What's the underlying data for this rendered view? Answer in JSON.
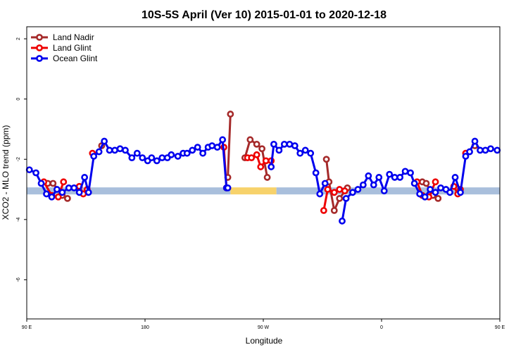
{
  "chart_data": {
    "type": "line",
    "title": "10S-5S April (Ver 10)   2015-01-01 to 2020-12-18",
    "xlabel": "Longitude",
    "ylabel": "XCO2 - MLO trend (ppm)",
    "xlim": [
      0,
      360
    ],
    "ylim": [
      -7.3,
      2.4
    ],
    "x_ticks": [
      {
        "value": 0,
        "label": "90 E"
      },
      {
        "value": 90,
        "label": "180"
      },
      {
        "value": 180,
        "label": "90 W"
      },
      {
        "value": 270,
        "label": "0"
      },
      {
        "value": 360,
        "label": "90 E"
      },
      {
        "value": 450,
        "label": "180"
      }
    ],
    "y_ticks": [
      {
        "value": 2,
        "label": "2"
      },
      {
        "value": 0,
        "label": "0"
      },
      {
        "value": -2,
        "label": "-2"
      },
      {
        "value": -4,
        "label": "-4"
      },
      {
        "value": -6,
        "label": "-6"
      }
    ],
    "grid": false,
    "legend_position": "top-left",
    "surface_band": {
      "y": -3.05,
      "segments": [
        {
          "x0": 0,
          "x1": 155,
          "color": "#a9bfdc"
        },
        {
          "x0": 155,
          "x1": 190,
          "color": "#f7d26b"
        },
        {
          "x0": 190,
          "x1": 360,
          "color": "#a9bfdc"
        }
      ]
    },
    "series": [
      {
        "name": "Land Nadir",
        "color": "#a52a2a",
        "segments": [
          {
            "x": [
              16,
              20,
              27,
              31
            ],
            "y": [
              -2.8,
              -2.8,
              -3.2,
              -3.3
            ]
          },
          {
            "x": [
              57
            ],
            "y": [
              -1.55
            ]
          },
          {
            "x": [
              153,
              155
            ],
            "y": [
              -2.6,
              -0.5
            ]
          },
          {
            "x": [
              166,
              170,
              175,
              179,
              183
            ],
            "y": [
              -1.95,
              -1.35,
              -1.5,
              -1.65,
              -2.6
            ]
          },
          {
            "x": [
              228,
              230,
              234,
              238,
              244
            ],
            "y": [
              -2.0,
              -2.75,
              -3.7,
              -3.3,
              -2.95
            ]
          },
          {
            "x": [
              301,
              304,
              309,
              313
            ],
            "y": [
              -2.75,
              -2.8,
              -3.2,
              -3.3
            ]
          },
          {
            "x": [
              341
            ],
            "y": [
              -1.55
            ]
          }
        ]
      },
      {
        "name": "Land Glint",
        "color": "#ee0000",
        "segments": [
          {
            "x": [
              13,
              19,
              24,
              28
            ],
            "y": [
              -2.75,
              -3.2,
              -3.25,
              -2.75
            ]
          },
          {
            "x": [
              40,
              43,
              46
            ],
            "y": [
              -2.9,
              -3.15,
              -3.0
            ]
          },
          {
            "x": [
              50
            ],
            "y": [
              -1.8
            ]
          },
          {
            "x": [
              150,
              152
            ],
            "y": [
              -1.6,
              -2.95
            ]
          },
          {
            "x": [
              168,
              171,
              175,
              178,
              182,
              186
            ],
            "y": [
              -1.95,
              -1.95,
              -1.85,
              -2.25,
              -2.05,
              -2.05
            ]
          },
          {
            "x": [
              226,
              229,
              234,
              238,
              242
            ],
            "y": [
              -3.7,
              -3.0,
              -3.1,
              -3.0,
              -3.05
            ]
          },
          {
            "x": [
              297,
              301,
              306,
              311
            ],
            "y": [
              -2.75,
              -3.2,
              -3.25,
              -2.75
            ]
          },
          {
            "x": [
              325,
              328,
              330
            ],
            "y": [
              -2.9,
              -3.15,
              -3.0
            ]
          },
          {
            "x": [
              334
            ],
            "y": [
              -1.8
            ]
          }
        ]
      },
      {
        "name": "Ocean Glint",
        "color": "#0000ee",
        "segments": [
          {
            "x": [
              2,
              7,
              11,
              15,
              19,
              23,
              27,
              32,
              36,
              40,
              44,
              47,
              51,
              55,
              59,
              63,
              67,
              71,
              75,
              80,
              84,
              88,
              92,
              95,
              99,
              103,
              107,
              110,
              115,
              119,
              122,
              126,
              130,
              134,
              138,
              141,
              145,
              149,
              152,
              153
            ],
            "y": [
              -2.35,
              -2.45,
              -2.8,
              -3.15,
              -3.25,
              -3.0,
              -3.1,
              -2.95,
              -2.95,
              -3.1,
              -2.6,
              -3.1,
              -1.9,
              -1.75,
              -1.4,
              -1.7,
              -1.7,
              -1.65,
              -1.7,
              -1.95,
              -1.8,
              -1.95,
              -2.05,
              -1.95,
              -2.05,
              -1.95,
              -1.95,
              -1.85,
              -1.9,
              -1.8,
              -1.8,
              -1.7,
              -1.6,
              -1.8,
              -1.6,
              -1.55,
              -1.6,
              -1.35,
              -2.95,
              -2.95
            ]
          },
          {
            "x": [
              186,
              188,
              192,
              196,
              200,
              204,
              208,
              212,
              216,
              220,
              223,
              227
            ],
            "y": [
              -2.25,
              -1.5,
              -1.7,
              -1.5,
              -1.5,
              -1.55,
              -1.8,
              -1.7,
              -1.8,
              -2.45,
              -3.15,
              -2.8
            ]
          },
          {
            "x": [
              240,
              243,
              248,
              252,
              256,
              260,
              264,
              268,
              272,
              276,
              280,
              284,
              288,
              292,
              295,
              299,
              303,
              307,
              311,
              315,
              319,
              322,
              326,
              330,
              334,
              337,
              341,
              345,
              349,
              353,
              358
            ],
            "y": [
              -4.05,
              -3.3,
              -3.1,
              -3.0,
              -2.85,
              -2.55,
              -2.85,
              -2.6,
              -3.05,
              -2.5,
              -2.6,
              -2.6,
              -2.4,
              -2.45,
              -2.8,
              -3.15,
              -3.25,
              -3.0,
              -3.1,
              -2.95,
              -3.0,
              -3.1,
              -2.6,
              -3.1,
              -1.9,
              -1.75,
              -1.4,
              -1.7,
              -1.7,
              -1.65,
              -1.7
            ]
          }
        ]
      }
    ]
  }
}
